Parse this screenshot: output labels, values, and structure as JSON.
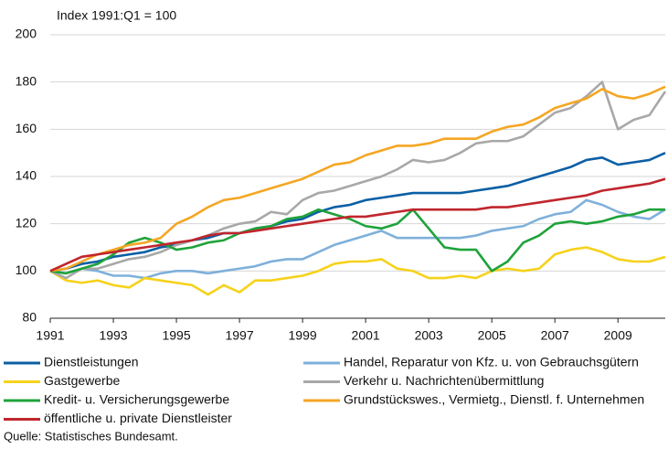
{
  "chart_data": {
    "type": "line",
    "y_label": "Index 1991:Q1 = 100",
    "source": "Quelle: Statistisches Bundesamt.",
    "grid": true,
    "x": [
      1991,
      1991.5,
      1992,
      1992.5,
      1993,
      1993.5,
      1994,
      1994.5,
      1995,
      1995.5,
      1996,
      1996.5,
      1997,
      1997.5,
      1998,
      1998.5,
      1999,
      1999.5,
      2000,
      2000.5,
      2001,
      2001.5,
      2002,
      2002.5,
      2003,
      2003.5,
      2004,
      2004.5,
      2005,
      2005.5,
      2006,
      2006.5,
      2007,
      2007.5,
      2008,
      2008.5,
      2009,
      2009.5,
      2010,
      2010.5
    ],
    "xlim": [
      1991,
      2010.5
    ],
    "xticks": [
      1991,
      1993,
      1995,
      1997,
      1999,
      2001,
      2003,
      2005,
      2007,
      2009
    ],
    "ylim": [
      80,
      200
    ],
    "yticks": [
      80,
      100,
      120,
      140,
      160,
      180,
      200
    ],
    "series": [
      {
        "name": "Dienstleistungen",
        "color": "#0b5fa5",
        "values": [
          100,
          101,
          103,
          104,
          106,
          107,
          108,
          110,
          111,
          113,
          114,
          116,
          116,
          118,
          119,
          121,
          122,
          125,
          127,
          128,
          130,
          131,
          132,
          133,
          133,
          133,
          133,
          134,
          135,
          136,
          138,
          140,
          142,
          144,
          147,
          148,
          145,
          146,
          147,
          150
        ]
      },
      {
        "name": "Handel, Reparatur von Kfz.  u. von Gebrauchsgütern",
        "color": "#7fb0da",
        "values": [
          100,
          99,
          101,
          100,
          98,
          98,
          97,
          99,
          100,
          100,
          99,
          100,
          101,
          102,
          104,
          105,
          105,
          108,
          111,
          113,
          115,
          117,
          114,
          114,
          114,
          114,
          114,
          115,
          117,
          118,
          119,
          122,
          124,
          125,
          130,
          128,
          125,
          123,
          122,
          126
        ]
      },
      {
        "name": "Gastgewerbe",
        "color": "#f6d21b",
        "values": [
          100,
          96,
          95,
          96,
          94,
          93,
          97,
          96,
          95,
          94,
          90,
          94,
          91,
          96,
          96,
          97,
          98,
          100,
          103,
          104,
          104,
          105,
          101,
          100,
          97,
          97,
          98,
          97,
          100,
          101,
          100,
          101,
          107,
          109,
          110,
          108,
          105,
          104,
          104,
          106
        ]
      },
      {
        "name": "Verkehr u. Nachrichtenübermittlung",
        "color": "#a8a8a8",
        "values": [
          100,
          97,
          101,
          101,
          103,
          105,
          106,
          108,
          111,
          113,
          115,
          118,
          120,
          121,
          125,
          124,
          130,
          133,
          134,
          136,
          138,
          140,
          143,
          147,
          146,
          147,
          150,
          154,
          155,
          155,
          157,
          162,
          167,
          169,
          174,
          180,
          160,
          164,
          166,
          176
        ]
      },
      {
        "name": "Kredit- u. Versicherungsgewerbe",
        "color": "#1fa33a",
        "values": [
          100,
          99,
          101,
          103,
          107,
          112,
          114,
          112,
          109,
          110,
          112,
          113,
          116,
          118,
          119,
          122,
          123,
          126,
          124,
          122,
          119,
          118,
          120,
          126,
          118,
          110,
          109,
          109,
          100,
          104,
          112,
          115,
          120,
          121,
          120,
          121,
          123,
          124,
          126,
          126
        ]
      },
      {
        "name": "Grundstückswes., Vermietg., Dienstl. f. Unternehmen",
        "color": "#f5a623",
        "values": [
          100,
          101,
          104,
          107,
          109,
          111,
          112,
          114,
          120,
          123,
          127,
          130,
          131,
          133,
          135,
          137,
          139,
          142,
          145,
          146,
          149,
          151,
          153,
          153,
          154,
          156,
          156,
          156,
          159,
          161,
          162,
          165,
          169,
          171,
          173,
          177,
          174,
          173,
          175,
          178
        ]
      },
      {
        "name": "öffentliche u. private Dienstleister",
        "color": "#c0262d",
        "values": [
          100,
          103,
          106,
          107,
          108,
          109,
          110,
          111,
          112,
          113,
          115,
          116,
          116,
          117,
          118,
          119,
          120,
          121,
          122,
          123,
          123,
          124,
          125,
          126,
          126,
          126,
          126,
          126,
          127,
          127,
          128,
          129,
          130,
          131,
          132,
          134,
          135,
          136,
          137,
          139
        ]
      }
    ]
  }
}
